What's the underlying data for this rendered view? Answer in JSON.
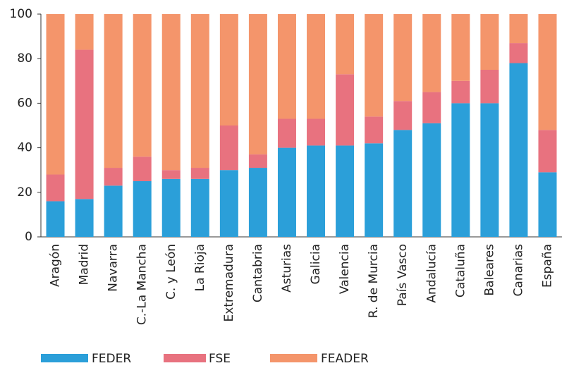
{
  "chart_data": {
    "type": "stacked_bar",
    "categories": [
      "Aragón",
      "Madrid",
      "Navarra",
      "C.-La Mancha",
      "C. y León",
      "La Rioja",
      "Extremadura",
      "Cantabria",
      "Asturias",
      "Galicia",
      "Valencia",
      "R. de Murcia",
      "País Vasco",
      "Andalucía",
      "Cataluña",
      "Baleares",
      "Canarias",
      "España"
    ],
    "series": [
      {
        "name": "FEDER",
        "color": "#2b9fd9",
        "values": [
          16,
          17,
          23,
          25,
          26,
          26,
          30,
          31,
          40,
          41,
          41,
          42,
          48,
          51,
          60,
          60,
          78,
          29
        ]
      },
      {
        "name": "FSE",
        "color": "#e8727f",
        "values": [
          12,
          67,
          8,
          11,
          4,
          5,
          20,
          6,
          13,
          12,
          32,
          12,
          13,
          14,
          10,
          15,
          9,
          19
        ]
      },
      {
        "name": "FEADER",
        "color": "#f4956b",
        "values": [
          72,
          16,
          69,
          64,
          70,
          69,
          50,
          63,
          47,
          47,
          27,
          46,
          39,
          35,
          30,
          25,
          13,
          52
        ]
      }
    ],
    "ylim": [
      0,
      100
    ],
    "yticks": [
      0,
      20,
      40,
      60,
      80,
      100
    ],
    "legend": "bottom"
  }
}
